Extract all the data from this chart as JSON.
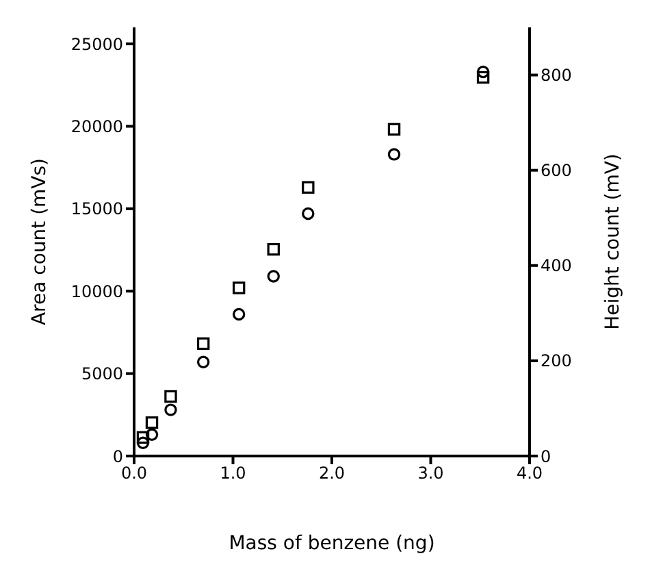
{
  "chart_data": {
    "type": "scatter",
    "xlabel": "Mass of benzene  (ng)",
    "ylabel": "Area count  (mVs)",
    "y2label": "Height count (mV)",
    "xlim": [
      0,
      4
    ],
    "xticks": [
      {
        "value": 0,
        "label": "0.0"
      },
      {
        "value": 1,
        "label": "1.0"
      },
      {
        "value": 2,
        "label": "2.0"
      },
      {
        "value": 3,
        "label": "3.0"
      },
      {
        "value": 4,
        "label": "4.0"
      }
    ],
    "ylim": [
      0,
      26000
    ],
    "yticks": [
      0,
      5000,
      10000,
      15000,
      20000,
      25000
    ],
    "y2lim": [
      0,
      900
    ],
    "y2ticks": [
      0,
      200,
      400,
      600,
      800
    ],
    "grid": false,
    "legend": false,
    "series": [
      {
        "color": "#000000",
        "marker": "circle",
        "x": [
          0.09,
          0.18,
          0.37,
          0.7,
          1.06,
          1.41,
          1.76,
          2.63,
          3.53
        ],
        "values": [
          800,
          1300,
          2800,
          5700,
          8600,
          10900,
          14700,
          18300,
          23300
        ]
      },
      {
        "color": "#000000",
        "marker": "square",
        "axis": "y2",
        "x": [
          0.09,
          0.18,
          0.37,
          0.7,
          1.06,
          1.41,
          1.76,
          2.63,
          3.53
        ],
        "values": [
          39,
          70,
          125,
          236,
          353,
          434,
          564,
          686,
          795
        ]
      }
    ]
  }
}
